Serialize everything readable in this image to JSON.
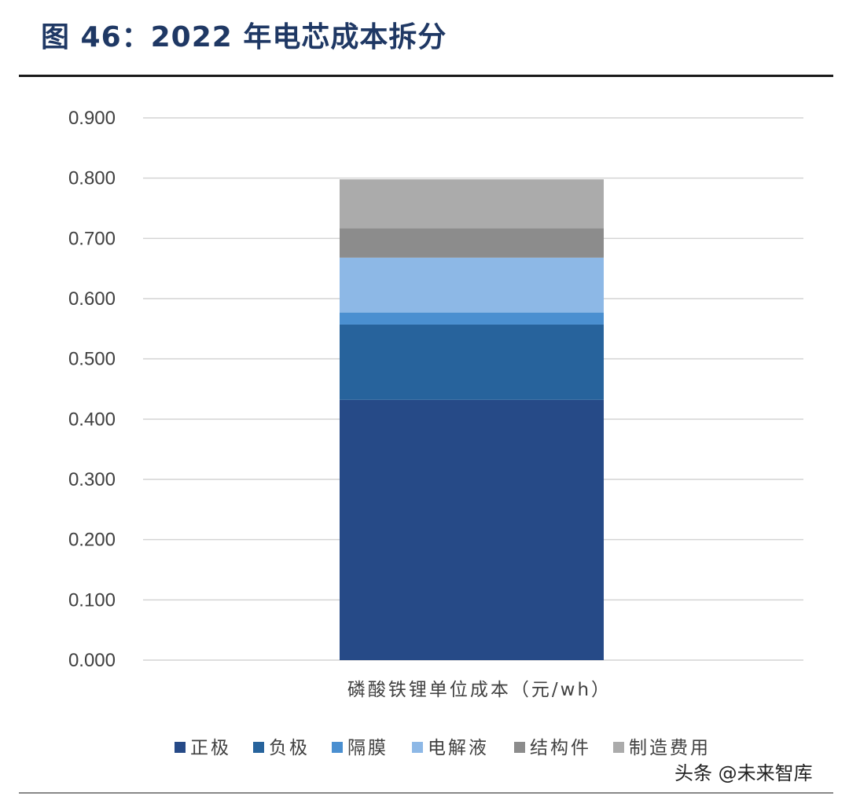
{
  "figure": {
    "title": "图 46：2022 年电芯成本拆分",
    "watermark": "头条 @未来智库"
  },
  "chart_data": {
    "type": "bar",
    "stacked": true,
    "categories": [
      "磷酸铁锂单位成本（元/wh）"
    ],
    "series": [
      {
        "name": "正极",
        "values": [
          0.432
        ],
        "color": "#264a87"
      },
      {
        "name": "负极",
        "values": [
          0.125
        ],
        "color": "#27639c"
      },
      {
        "name": "隔膜",
        "values": [
          0.02
        ],
        "color": "#4a8fd0"
      },
      {
        "name": "电解液",
        "values": [
          0.091
        ],
        "color": "#8db8e6"
      },
      {
        "name": "结构件",
        "values": [
          0.049
        ],
        "color": "#8c8c8c"
      },
      {
        "name": "制造费用",
        "values": [
          0.081
        ],
        "color": "#ababab"
      }
    ],
    "ylim": [
      0,
      0.9
    ],
    "yticks": [
      "0.000",
      "0.100",
      "0.200",
      "0.300",
      "0.400",
      "0.500",
      "0.600",
      "0.700",
      "0.800",
      "0.900"
    ],
    "grid": true,
    "legend_position": "bottom"
  }
}
